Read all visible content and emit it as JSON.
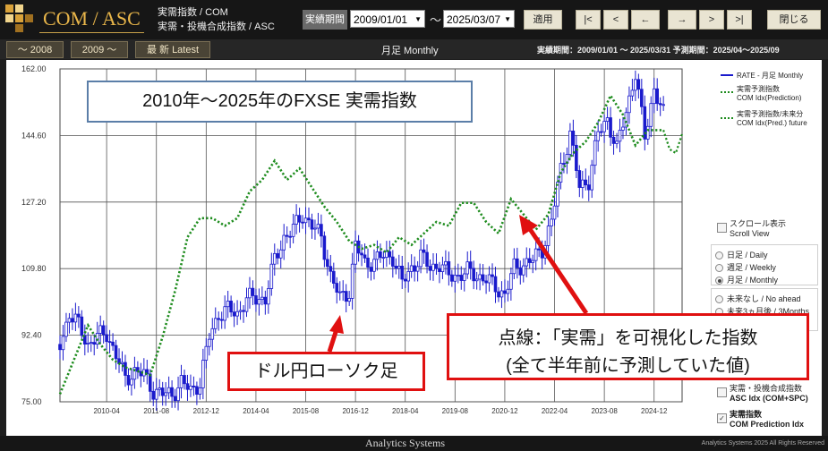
{
  "header": {
    "brand": "COM / ASC",
    "sub1": "実需指数 / COM",
    "sub2": "実需・投機合成指数 / ASC",
    "period_label": "実績期間",
    "date_from": "2009/01/01",
    "date_to": "2025/03/07",
    "tilde": "～",
    "apply": "適用",
    "nav": [
      "|<",
      "<",
      "←",
      "→",
      ">",
      ">|"
    ],
    "close": "閉じる"
  },
  "tabs": [
    "～ 2008",
    "2009 ～",
    "最 新  Latest"
  ],
  "subheader": {
    "monthly": "月足 Monthly",
    "period_info": "実績期間：2009/01/01 ～ 2025/03/31  予測期間：2025/04～2025/09"
  },
  "colors": {
    "rate": "#1a1acc",
    "prediction": "#1e8c1e",
    "annotation_border": "#e01010",
    "brand": "#e9b64a"
  },
  "legend": [
    {
      "line1": "RATE - 月足 Monthly",
      "line2": ""
    },
    {
      "line1": "実需予測指数",
      "line2": "COM Idx(Prediction)"
    },
    {
      "line1": "実需予測指数/未来分",
      "line2": "COM Idx(Pred.) future"
    }
  ],
  "panel": {
    "scroll_jp": "スクロール表示",
    "scroll_en": "Scroll View",
    "timeframes": [
      "日足 / Daily",
      "週足 / Weekly",
      "月足 / Monthly"
    ],
    "ahead": [
      "未来なし / No ahead",
      "未来3ヵ月後 / 3Months"
    ],
    "asc_jp": "実需・投機合成指数",
    "asc_en": "ASC Idx (COM+SPC)",
    "com_jp": "実需指数",
    "com_en": "COM Prediction Idx",
    "com_check": "✓"
  },
  "annotations": {
    "title": "2010年～2025年のFXSE 実需指数",
    "candle_label": "ドル円ローソク足",
    "dotted_line1": "点線：「実需」を可視化した指数",
    "dotted_line2": "(全て半年前に予測していた値)"
  },
  "footer": {
    "brand": "Analytics Systems",
    "copyright": "Analytics Systems 2025 All Rights Reserved"
  },
  "chart_data": {
    "type": "line",
    "ylim": [
      75.0,
      162.0
    ],
    "yticks": [
      "162.00",
      "144.60",
      "127.20",
      "109.80",
      "92.40",
      "75.00"
    ],
    "xticks": [
      "2010-04",
      "2011-08",
      "2012-12",
      "2014-04",
      "2015-08",
      "2016-12",
      "2018-04",
      "2019-08",
      "2020-12",
      "2022-04",
      "2023-08",
      "2024-12"
    ],
    "xlim": [
      "2009-01",
      "2025-09"
    ],
    "series": [
      {
        "name": "RATE - 月足 Monthly",
        "kind": "candlestick-close",
        "points": [
          [
            "2009-01",
            90
          ],
          [
            "2009-04",
            98
          ],
          [
            "2009-07",
            95
          ],
          [
            "2009-10",
            90
          ],
          [
            "2010-01",
            92
          ],
          [
            "2010-04",
            93
          ],
          [
            "2010-07",
            87
          ],
          [
            "2010-10",
            81
          ],
          [
            "2011-01",
            83
          ],
          [
            "2011-04",
            82
          ],
          [
            "2011-07",
            78
          ],
          [
            "2011-10",
            77
          ],
          [
            "2012-01",
            77
          ],
          [
            "2012-04",
            80
          ],
          [
            "2012-07",
            78
          ],
          [
            "2012-10",
            80
          ],
          [
            "2013-01",
            92
          ],
          [
            "2013-04",
            98
          ],
          [
            "2013-07",
            99
          ],
          [
            "2013-10",
            98
          ],
          [
            "2014-01",
            102
          ],
          [
            "2014-04",
            102
          ],
          [
            "2014-07",
            102
          ],
          [
            "2014-10",
            112
          ],
          [
            "2015-01",
            118
          ],
          [
            "2015-04",
            120
          ],
          [
            "2015-07",
            124
          ],
          [
            "2015-10",
            121
          ],
          [
            "2016-01",
            118
          ],
          [
            "2016-04",
            108
          ],
          [
            "2016-07",
            102
          ],
          [
            "2016-10",
            104
          ],
          [
            "2016-12",
            116
          ],
          [
            "2017-03",
            111
          ],
          [
            "2017-06",
            112
          ],
          [
            "2017-09",
            113
          ],
          [
            "2017-12",
            113
          ],
          [
            "2018-03",
            106
          ],
          [
            "2018-06",
            110
          ],
          [
            "2018-09",
            113
          ],
          [
            "2018-12",
            110
          ],
          [
            "2019-03",
            111
          ],
          [
            "2019-06",
            108
          ],
          [
            "2019-09",
            108
          ],
          [
            "2019-12",
            109
          ],
          [
            "2020-03",
            108
          ],
          [
            "2020-06",
            107
          ],
          [
            "2020-09",
            105
          ],
          [
            "2020-12",
            103
          ],
          [
            "2021-03",
            110
          ],
          [
            "2021-06",
            111
          ],
          [
            "2021-09",
            112
          ],
          [
            "2021-12",
            115
          ],
          [
            "2022-03",
            122
          ],
          [
            "2022-06",
            136
          ],
          [
            "2022-09",
            145
          ],
          [
            "2022-12",
            131
          ],
          [
            "2023-03",
            133
          ],
          [
            "2023-06",
            145
          ],
          [
            "2023-09",
            149
          ],
          [
            "2023-12",
            141
          ],
          [
            "2024-03",
            151
          ],
          [
            "2024-06",
            161
          ],
          [
            "2024-09",
            144
          ],
          [
            "2024-12",
            157
          ],
          [
            "2025-03",
            150
          ]
        ]
      },
      {
        "name": "実需予測指数 COM Idx(Prediction)",
        "kind": "dotted",
        "points": [
          [
            "2009-01",
            77
          ],
          [
            "2009-06",
            87
          ],
          [
            "2009-10",
            95
          ],
          [
            "2010-02",
            90
          ],
          [
            "2010-06",
            86
          ],
          [
            "2010-10",
            84
          ],
          [
            "2011-02",
            83
          ],
          [
            "2011-06",
            82
          ],
          [
            "2011-10",
            92
          ],
          [
            "2012-02",
            104
          ],
          [
            "2012-06",
            118
          ],
          [
            "2012-10",
            123
          ],
          [
            "2013-02",
            123
          ],
          [
            "2013-06",
            121
          ],
          [
            "2013-10",
            123
          ],
          [
            "2014-02",
            130
          ],
          [
            "2014-06",
            133
          ],
          [
            "2014-10",
            138
          ],
          [
            "2015-02",
            133
          ],
          [
            "2015-06",
            136
          ],
          [
            "2015-10",
            131
          ],
          [
            "2016-02",
            126
          ],
          [
            "2016-06",
            122
          ],
          [
            "2016-10",
            117
          ],
          [
            "2017-02",
            115
          ],
          [
            "2017-06",
            116
          ],
          [
            "2017-10",
            114
          ],
          [
            "2018-02",
            118
          ],
          [
            "2018-06",
            116
          ],
          [
            "2018-10",
            119
          ],
          [
            "2019-02",
            122
          ],
          [
            "2019-06",
            121
          ],
          [
            "2019-10",
            127
          ],
          [
            "2020-02",
            127
          ],
          [
            "2020-06",
            122
          ],
          [
            "2020-10",
            119
          ],
          [
            "2021-02",
            128
          ],
          [
            "2021-06",
            124
          ],
          [
            "2021-10",
            120
          ],
          [
            "2022-02",
            124
          ],
          [
            "2022-06",
            135
          ],
          [
            "2022-10",
            140
          ],
          [
            "2023-02",
            143
          ],
          [
            "2023-06",
            148
          ],
          [
            "2023-10",
            155
          ],
          [
            "2024-02",
            150
          ],
          [
            "2024-06",
            142
          ],
          [
            "2024-10",
            146
          ],
          [
            "2025-03",
            146
          ]
        ]
      },
      {
        "name": "実需予測指数/未来分 COM Idx(Pred.) future",
        "kind": "dotted",
        "points": [
          [
            "2025-03",
            146
          ],
          [
            "2025-05",
            141
          ],
          [
            "2025-07",
            140
          ],
          [
            "2025-09",
            145
          ]
        ]
      }
    ]
  }
}
